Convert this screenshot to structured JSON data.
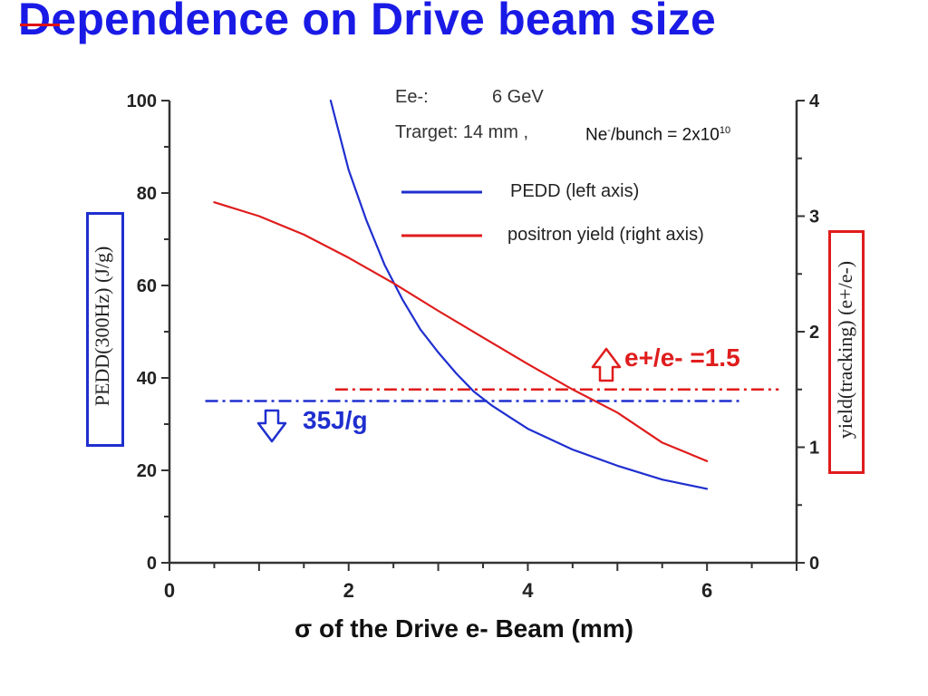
{
  "slide": {
    "title": "Dependence on Drive beam size"
  },
  "annotations": {
    "beam_energy_label": "Ee-:",
    "beam_energy_value": "6  GeV",
    "target_text": "Trarget: 14 mm ,",
    "bunch_text_prefix": "Ne",
    "bunch_text_sup1": "-",
    "bunch_text_mid": "/bunch = 2x10",
    "bunch_text_sup2": "10",
    "pedd_limit_label": "35J/g",
    "yield_limit_label": "e+/e- =1.5",
    "down_arrow_icon": "down-arrow-icon",
    "up_arrow_icon": "up-arrow-icon"
  },
  "colors": {
    "title": "#1a1ae6",
    "pedd": "#1f2fcf",
    "yield": "#e01c1c",
    "axis": "#333333"
  },
  "chart_data": {
    "type": "line",
    "xlabel": "σ of the Drive e- Beam (mm)",
    "ylabel_left": "PEDD(300Hz) (J/g)",
    "ylabel_right": "yield(tracking) (e+/e-)",
    "xlim": [
      0,
      7
    ],
    "ylim_left": [
      0,
      100
    ],
    "ylim_right": [
      0,
      4
    ],
    "x_ticks": [
      0,
      2,
      4,
      6
    ],
    "y_ticks_left": [
      0,
      20,
      40,
      60,
      80,
      100
    ],
    "y_ticks_right": [
      0,
      1,
      2,
      3,
      4
    ],
    "grid": false,
    "legend": "top-right",
    "series": [
      {
        "name": "PEDD (left axis)",
        "axis": "left",
        "x": [
          1.8,
          2.0,
          2.2,
          2.4,
          2.6,
          2.8,
          3.0,
          3.2,
          3.4,
          3.6,
          3.8,
          4.0,
          4.5,
          5.0,
          5.5,
          6.0
        ],
        "y": [
          100,
          85,
          74,
          64.5,
          57,
          50.5,
          45.5,
          41,
          37,
          34,
          31.5,
          29,
          24.5,
          21,
          18,
          16
        ]
      },
      {
        "name": "positron yield (right axis)",
        "axis": "right",
        "x": [
          0.5,
          1.0,
          1.5,
          2.0,
          2.5,
          3.0,
          3.5,
          4.0,
          4.5,
          5.0,
          5.5,
          6.0
        ],
        "y": [
          3.12,
          3.0,
          2.84,
          2.64,
          2.42,
          2.18,
          1.95,
          1.72,
          1.5,
          1.3,
          1.04,
          0.88
        ]
      }
    ],
    "reference_lines": [
      {
        "label": "35J/g",
        "axis": "left",
        "value": 35,
        "x_from": 0.4,
        "x_to": 6.4
      },
      {
        "label": "e+/e- =1.5",
        "axis": "right",
        "value": 1.5,
        "x_from": 1.85,
        "x_to": 6.8
      }
    ]
  }
}
